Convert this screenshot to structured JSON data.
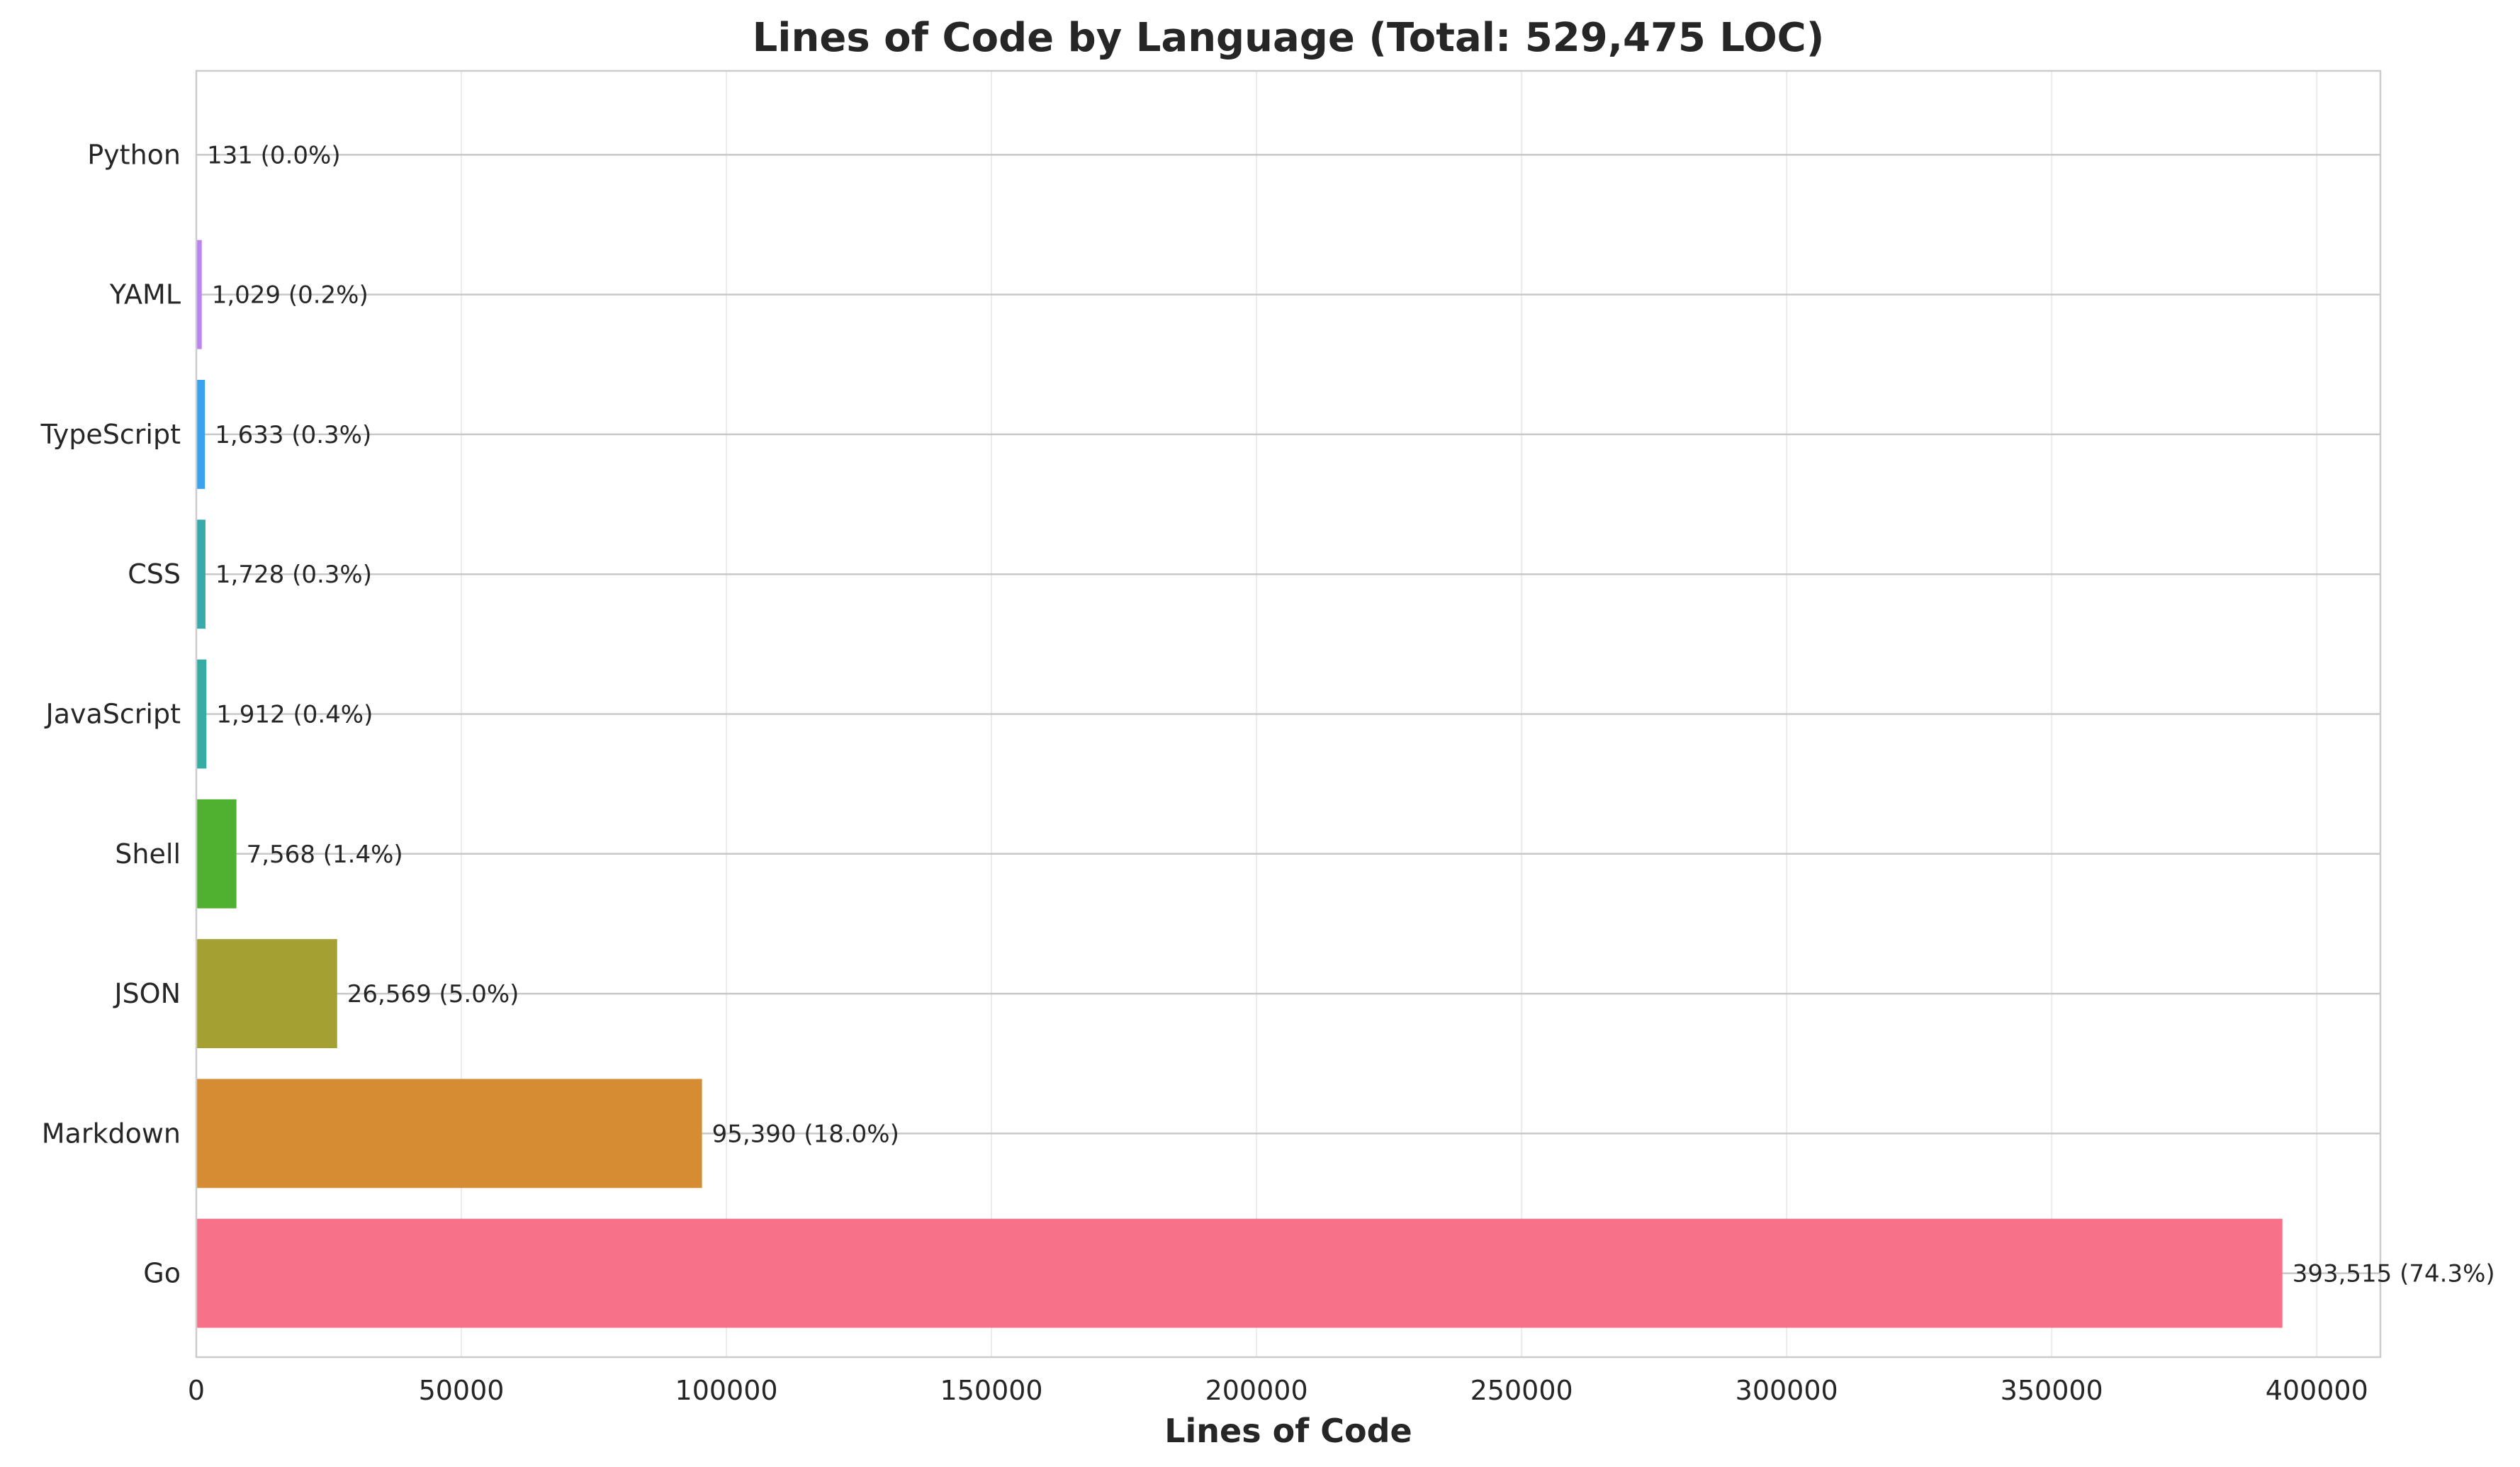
{
  "chart_data": {
    "type": "bar",
    "orientation": "horizontal",
    "title": "Lines of Code by Language (Total: 529,475 LOC)",
    "xlabel": "Lines of Code",
    "ylabel": "",
    "xlim": [
      0,
      412000
    ],
    "x_ticks": [
      0,
      50000,
      100000,
      150000,
      200000,
      250000,
      300000,
      350000,
      400000
    ],
    "x_tick_labels": [
      "0",
      "50000",
      "100000",
      "150000",
      "200000",
      "250000",
      "300000",
      "350000",
      "400000"
    ],
    "grid": true,
    "legend": "none",
    "categories": [
      "Go",
      "Markdown",
      "JSON",
      "Shell",
      "JavaScript",
      "CSS",
      "TypeScript",
      "YAML",
      "Python"
    ],
    "values": [
      393515,
      95390,
      26569,
      7568,
      1912,
      1728,
      1633,
      1029,
      131
    ],
    "data_labels": [
      "393,515 (74.3%)",
      "95,390 (18.0%)",
      "26,569 (5.0%)",
      "7,568 (1.4%)",
      "1,912 (0.4%)",
      "1,728 (0.3%)",
      "1,633 (0.3%)",
      "1,029 (0.2%)",
      "131 (0.0%)"
    ],
    "colors": [
      "#f77189",
      "#d58c32",
      "#a4a031",
      "#50b131",
      "#36ada4",
      "#38aaac",
      "#3ba3ec",
      "#bb83f4",
      "#f565cc"
    ]
  }
}
